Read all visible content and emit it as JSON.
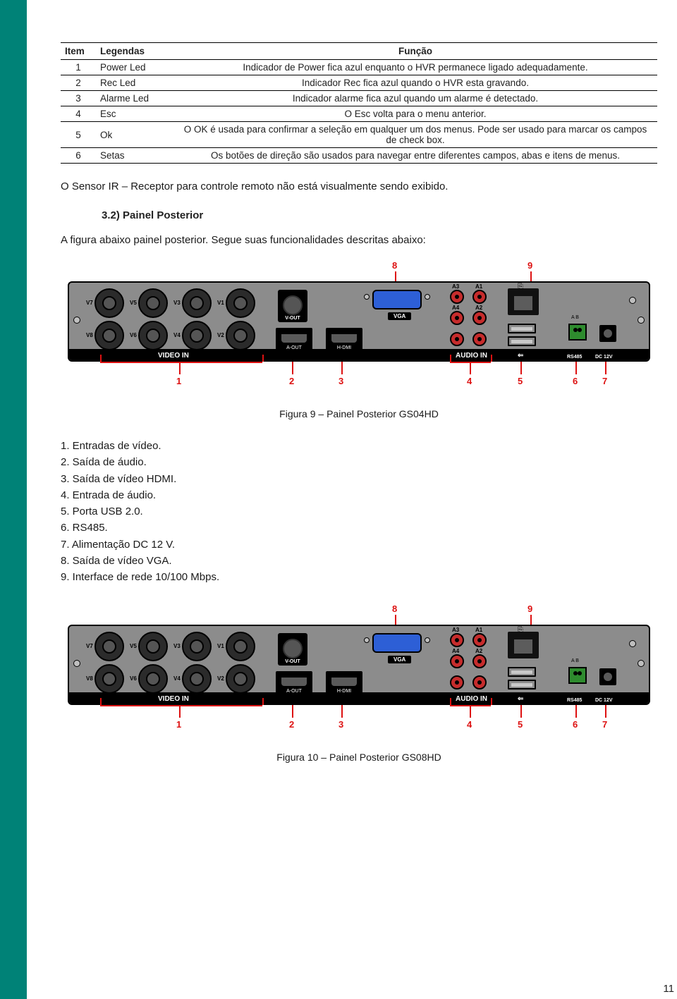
{
  "sidebar_color": "#008277",
  "table": {
    "headers": [
      "Item",
      "Legendas",
      "Função"
    ],
    "rows": [
      {
        "item": "1",
        "leg": "Power Led",
        "func": "Indicador de Power fica azul enquanto o HVR permanece ligado adequadamente."
      },
      {
        "item": "2",
        "leg": "Rec Led",
        "func": "Indicador Rec fica azul quando o HVR esta gravando."
      },
      {
        "item": "3",
        "leg": "Alarme Led",
        "func": "Indicador alarme fica azul quando um alarme é detectado."
      },
      {
        "item": "4",
        "leg": "Esc",
        "func": "O Esc volta para o menu anterior."
      },
      {
        "item": "5",
        "leg": "Ok",
        "func": "O OK é usada para confirmar a seleção em qualquer um dos menus. Pode ser usado para marcar os campos de check box."
      },
      {
        "item": "6",
        "leg": "Setas",
        "func": "Os botões de direção são usados para navegar entre diferentes campos, abas e itens de menus."
      }
    ]
  },
  "sensor_line": "O Sensor IR – Receptor para controle remoto não está visualmente sendo exibido.",
  "section_title": "3.2) Painel Posterior",
  "intro_line": "A figura abaixo painel posterior. Segue suas funcionalidades descritas abaixo:",
  "panel_labels": {
    "video_in": "VIDEO IN",
    "vout": "V-OUT",
    "aout": "A-OUT",
    "hdmi": "H-DMI",
    "audio_in": "AUDIO IN",
    "rs485": "RS485",
    "dc": "DC 12V",
    "vga": "VGA",
    "bnc": [
      "V7",
      "V5",
      "V3",
      "V1",
      "V8",
      "V6",
      "V4",
      "V2"
    ],
    "rca": [
      "A3",
      "A1",
      "A4",
      "A2"
    ],
    "rs485_ab": "A  B"
  },
  "callouts": {
    "top": [
      "8",
      "9"
    ],
    "bottom": [
      "1",
      "2",
      "3",
      "4",
      "5",
      "6",
      "7"
    ]
  },
  "caption1": "Figura 9 – Painel Posterior GS04HD",
  "caption2": "Figura 10 – Painel Posterior GS08HD",
  "port_list": [
    "1. Entradas de vídeo.",
    "2. Saída de áudio.",
    "3. Saída de vídeo HDMI.",
    "4. Entrada de áudio.",
    "5. Porta USB 2.0.",
    "6. RS485.",
    "7. Alimentação DC 12 V.",
    "8. Saída de vídeo VGA.",
    "9. Interface de rede 10/100 Mbps."
  ],
  "page_number": "11",
  "colors": {
    "callout": "#d11",
    "panel_bg": "#8c8c8c",
    "vga": "#2d5fd6",
    "rca": "#c62c2c",
    "rs485": "#2e8b2e"
  }
}
